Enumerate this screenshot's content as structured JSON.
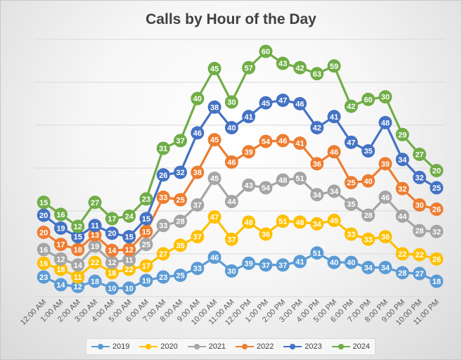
{
  "chart_data": {
    "type": "line",
    "title": "Calls by Hour of the Day",
    "xlabel": "",
    "ylabel": "",
    "categories": [
      "12:00 AM",
      "1:00 AM",
      "2:00 AM",
      "3:00 AM",
      "4:00 AM",
      "5:00 AM",
      "6:00 AM",
      "7:00 AM",
      "8:00 AM",
      "9:00 AM",
      "10:00 AM",
      "11:00 AM",
      "12:00 PM",
      "1:00 PM",
      "2:00 PM",
      "3:00 PM",
      "4:00 PM",
      "5:00 PM",
      "6:00 PM",
      "7:00 PM",
      "8:00 PM",
      "9:00 PM",
      "10:00 PM",
      "11:00 PM"
    ],
    "stacked": true,
    "gridlines": true,
    "legend_position": "bottom",
    "series": [
      {
        "name": "2019",
        "color": "#5b9bd5",
        "values": [
          23,
          14,
          12,
          18,
          10,
          10,
          19,
          23,
          25,
          33,
          46,
          30,
          39,
          37,
          37,
          41,
          51,
          40,
          40,
          34,
          34,
          28,
          27,
          18
        ]
      },
      {
        "name": "2020",
        "color": "#ffc000",
        "values": [
          16,
          18,
          11,
          22,
          18,
          22,
          17,
          27,
          35,
          37,
          47,
          37,
          48,
          36,
          51,
          46,
          34,
          49,
          33,
          33,
          36,
          22,
          22,
          26
        ]
      },
      {
        "name": "2021",
        "color": "#a5a5a5",
        "values": [
          16,
          12,
          14,
          19,
          12,
          11,
          25,
          33,
          28,
          37,
          45,
          44,
          43,
          54,
          48,
          51,
          34,
          34,
          35,
          28,
          46,
          44,
          28,
          32
        ]
      },
      {
        "name": "2022",
        "color": "#ed7d31",
        "values": [
          20,
          17,
          18,
          13,
          14,
          12,
          15,
          33,
          25,
          38,
          45,
          46,
          39,
          54,
          46,
          41,
          36,
          46,
          25,
          40,
          39,
          32,
          30,
          26
        ]
      },
      {
        "name": "2023",
        "color": "#4472c4",
        "values": [
          20,
          19,
          15,
          11,
          20,
          15,
          15,
          26,
          32,
          46,
          38,
          40,
          41,
          45,
          47,
          46,
          42,
          41,
          47,
          35,
          48,
          34,
          32,
          25
        ]
      },
      {
        "name": "2024",
        "color": "#70ad47",
        "values": [
          15,
          16,
          12,
          27,
          17,
          24,
          23,
          31,
          37,
          40,
          45,
          30,
          57,
          60,
          43,
          42,
          63,
          59,
          42,
          60,
          30,
          29,
          27,
          20
        ]
      }
    ]
  }
}
